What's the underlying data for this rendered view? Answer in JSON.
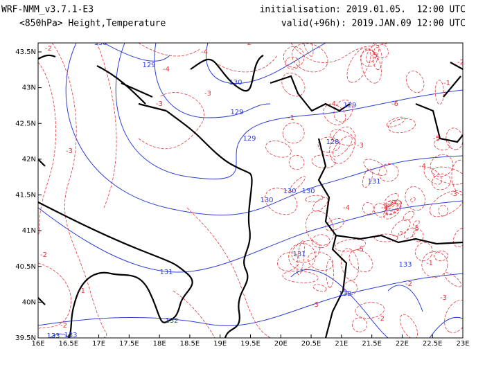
{
  "header": {
    "model": "WRF-NMM_v3.7.1-E3",
    "level": "<850hPa> Height,Temperature",
    "init": "initialisation: 2019.01.05.  12:00 UTC",
    "valid": "valid(+96h): 2019.JAN.09 12:00 UTC"
  },
  "map": {
    "lon_ticks": [
      {
        "value": 16,
        "label": "16E"
      },
      {
        "value": 16.5,
        "label": "16.5E"
      },
      {
        "value": 17,
        "label": "17E"
      },
      {
        "value": 17.5,
        "label": "17.5E"
      },
      {
        "value": 18,
        "label": "18E"
      },
      {
        "value": 18.5,
        "label": "18.5E"
      },
      {
        "value": 19,
        "label": "19E"
      },
      {
        "value": 19.5,
        "label": "19.5E"
      },
      {
        "value": 20,
        "label": "20E"
      },
      {
        "value": 20.5,
        "label": "20.5E"
      },
      {
        "value": 21,
        "label": "21E"
      },
      {
        "value": 21.5,
        "label": "21.5E"
      },
      {
        "value": 22,
        "label": "22E"
      },
      {
        "value": 22.5,
        "label": "22.5E"
      },
      {
        "value": 23,
        "label": "23E"
      }
    ],
    "lat_ticks": [
      {
        "value": 39.5,
        "label": "39.5N"
      },
      {
        "value": 40,
        "label": "40N"
      },
      {
        "value": 40.5,
        "label": "40.5N"
      },
      {
        "value": 41,
        "label": "41N"
      },
      {
        "value": 41.5,
        "label": "41.5N"
      },
      {
        "value": 42,
        "label": "42N"
      },
      {
        "value": 42.5,
        "label": "42.5N"
      },
      {
        "value": 43,
        "label": "43N"
      },
      {
        "value": 43.5,
        "label": "43.5N"
      }
    ],
    "height_labels": [
      "131",
      "130",
      "129",
      "130",
      "129",
      "129",
      "130",
      "131",
      "132",
      "133",
      "133",
      "131",
      "130",
      "128",
      "132",
      "133",
      "130",
      "129",
      "131"
    ],
    "temp_labels": [
      "-2",
      "-3",
      "-4",
      "-3",
      "-2",
      "-1",
      "-2",
      "-3",
      "-2",
      "-1",
      "-4",
      "-5",
      "-5",
      "-4",
      "-3",
      "-6",
      "-5",
      "-4",
      "-3",
      "-4",
      "-5",
      "-2",
      "-3",
      "-1",
      "-4",
      "-5",
      "-3",
      "-2",
      "-1",
      "-2"
    ]
  }
}
